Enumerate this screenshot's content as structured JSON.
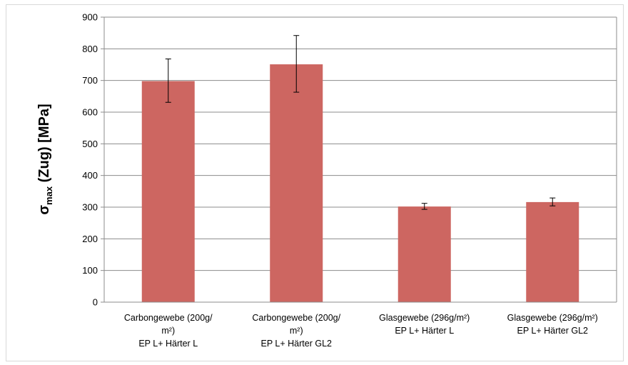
{
  "chart_data": {
    "type": "bar",
    "categories": [
      [
        "Carbongewebe (200g/",
        "m²)",
        "EP L+ Härter L"
      ],
      [
        "Carbongewebe (200g/",
        "m²)",
        "EP L+ Härter GL2"
      ],
      [
        "Glasgewebe (296g/m²)",
        "EP L+ Härter L"
      ],
      [
        "Glasgewebe (296g/m²)",
        "EP L+ Härter GL2"
      ]
    ],
    "values": [
      698,
      751,
      302,
      316
    ],
    "error_bars": [
      {
        "low": 631,
        "high": 768
      },
      {
        "low": 663,
        "high": 842
      },
      {
        "low": 293,
        "high": 312
      },
      {
        "low": 304,
        "high": 329
      }
    ],
    "ylabel": {
      "main": "σ",
      "subscript": "max",
      "rest": " (Zug) [MPa]"
    },
    "ylim": [
      0,
      900
    ],
    "yticks": [
      0,
      100,
      200,
      300,
      400,
      500,
      600,
      700,
      800,
      900
    ],
    "grid": true,
    "bar_color": "#cd6661",
    "grid_color": "#8c8c8c"
  }
}
